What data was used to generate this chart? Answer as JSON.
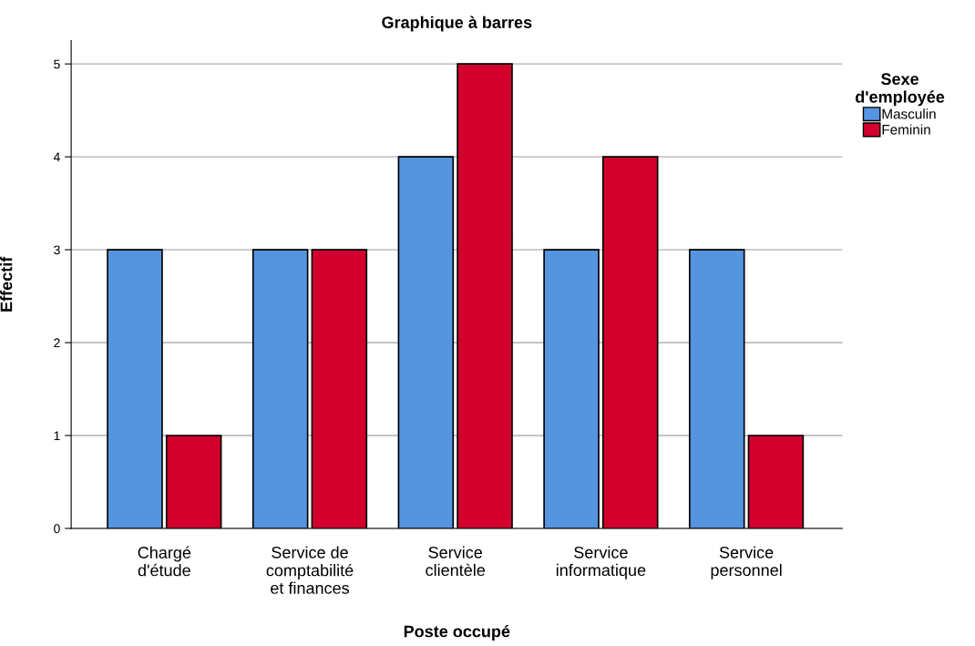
{
  "chart_data": {
    "type": "bar",
    "title": "Graphique à barres",
    "xlabel": "Poste occupé",
    "ylabel": "Effectif",
    "legend_title": "Sexe\nd'employée",
    "categories": [
      "Chargé\nd'étude",
      "Service de\ncomptabilité\net finances",
      "Service\nclientèle",
      "Service\ninformatique",
      "Service\npersonnel"
    ],
    "series": [
      {
        "name": "Masculin",
        "color": "#5595e0",
        "values": [
          3,
          3,
          4,
          3,
          3
        ]
      },
      {
        "name": "Feminin",
        "color": "#d2002d",
        "values": [
          1,
          3,
          5,
          4,
          1
        ]
      }
    ],
    "ylim": [
      0,
      5.25
    ],
    "yticks": [
      0,
      1,
      2,
      3,
      4,
      5
    ],
    "grid": "y",
    "legend": "top right"
  }
}
